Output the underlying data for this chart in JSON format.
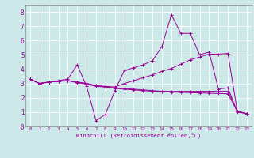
{
  "xlabel": "Windchill (Refroidissement éolien,°C)",
  "background_color": "#cde8e8",
  "line_color": "#990099",
  "grid_color": "#ffffff",
  "xlim": [
    -0.5,
    23.5
  ],
  "ylim": [
    0,
    8.5
  ],
  "xticks": [
    0,
    1,
    2,
    3,
    4,
    5,
    6,
    7,
    8,
    9,
    10,
    11,
    12,
    13,
    14,
    15,
    16,
    17,
    18,
    19,
    20,
    21,
    22,
    23
  ],
  "yticks": [
    0,
    1,
    2,
    3,
    4,
    5,
    6,
    7,
    8
  ],
  "series": [
    {
      "x": [
        0,
        1,
        2,
        3,
        4,
        5,
        6,
        7,
        8,
        9,
        10,
        11,
        12,
        13,
        14,
        15,
        16,
        17,
        18,
        19,
        20,
        21,
        22,
        23
      ],
      "y": [
        3.3,
        3.0,
        3.1,
        3.2,
        3.3,
        4.3,
        2.8,
        0.4,
        0.85,
        2.5,
        3.9,
        4.1,
        4.3,
        4.6,
        5.6,
        7.8,
        6.5,
        6.5,
        5.0,
        5.2,
        2.6,
        2.7,
        1.0,
        0.9
      ]
    },
    {
      "x": [
        0,
        1,
        2,
        3,
        4,
        5,
        6,
        7,
        8,
        9,
        10,
        11,
        12,
        13,
        14,
        15,
        16,
        17,
        18,
        19,
        20,
        21,
        22,
        23
      ],
      "y": [
        3.3,
        3.0,
        3.1,
        3.15,
        3.2,
        3.1,
        3.0,
        2.85,
        2.75,
        2.65,
        2.6,
        2.55,
        2.5,
        2.45,
        2.45,
        2.45,
        2.45,
        2.45,
        2.45,
        2.45,
        2.45,
        2.45,
        1.05,
        0.9
      ]
    },
    {
      "x": [
        0,
        1,
        2,
        3,
        4,
        5,
        6,
        7,
        8,
        9,
        10,
        11,
        12,
        13,
        14,
        15,
        16,
        17,
        18,
        19,
        20,
        21,
        22,
        23
      ],
      "y": [
        3.3,
        3.0,
        3.1,
        3.15,
        3.2,
        3.1,
        3.0,
        2.85,
        2.8,
        2.75,
        3.0,
        3.2,
        3.4,
        3.6,
        3.85,
        4.05,
        4.35,
        4.65,
        4.85,
        5.05,
        5.05,
        5.1,
        1.05,
        0.9
      ]
    },
    {
      "x": [
        0,
        1,
        2,
        3,
        4,
        5,
        6,
        7,
        8,
        9,
        10,
        11,
        12,
        13,
        14,
        15,
        16,
        17,
        18,
        19,
        20,
        21,
        22,
        23
      ],
      "y": [
        3.3,
        3.0,
        3.1,
        3.15,
        3.2,
        3.05,
        2.95,
        2.8,
        2.75,
        2.7,
        2.65,
        2.6,
        2.55,
        2.5,
        2.45,
        2.4,
        2.38,
        2.36,
        2.34,
        2.32,
        2.3,
        2.28,
        1.05,
        0.9
      ]
    }
  ]
}
